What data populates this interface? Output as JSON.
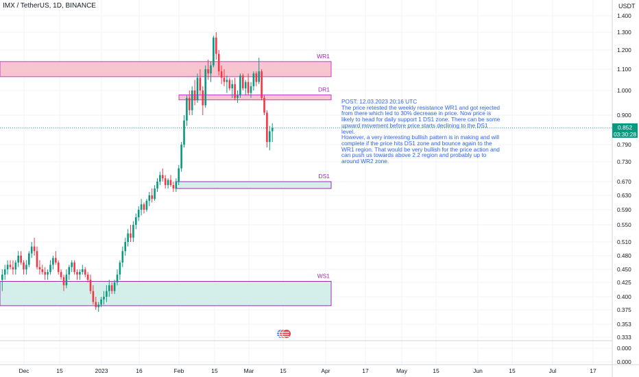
{
  "header": {
    "title": "IMX / TetherUS, 1D, BINANCE",
    "currency": "USDT"
  },
  "note": {
    "text": "POST: 12.03.2023 20:16 UTC\nThe price retested the weekly resistance WR1 and got rejected from there which led to 30% decrease in price. Now price is likely to head for daily support 1 DS1 zone. There can be some upward movement before price starts declining to the DS1 level.\nHowever, a very interesting bullish pattern is in making and will complete if the price hits DS1 zone and bounce again to the WR1 region. That would be very bullish for the price action and can push us towards above 2.2 region and probably up to around WR2 zone."
  },
  "price_tag": {
    "price": "0.852",
    "countdown": "03:30:28"
  },
  "chart_data": {
    "type": "candlestick",
    "y_ticks": [
      "1.400",
      "1.300",
      "1.200",
      "1.100",
      "1.000",
      "0.900",
      "0.790",
      "0.730",
      "0.670",
      "0.630",
      "0.590",
      "0.550",
      "0.510",
      "0.480",
      "0.450",
      "0.425",
      "0.400",
      "0.375",
      "0.353",
      "0.333"
    ],
    "y_ticks_lower": [
      "0.000",
      "0.000"
    ],
    "x_ticks": [
      "Dec",
      "15",
      "2023",
      "16",
      "Feb",
      "15",
      "Mar",
      "15",
      "Apr",
      "17",
      "May",
      "15",
      "Jun",
      "15",
      "Jul",
      "17"
    ],
    "current_price": 0.852,
    "zones": [
      {
        "label": "WR1",
        "low": 1.065,
        "high": 1.14,
        "color": "#f7c5cf",
        "border": "#c23ccc",
        "label_color": "#9c27b0"
      },
      {
        "label": "DR1",
        "low": 0.962,
        "high": 0.982,
        "color": "#f7c5cf",
        "border": "#c23ccc",
        "label_color": "#9c27b0"
      },
      {
        "label": "DS1",
        "low": 0.65,
        "high": 0.67,
        "color": "#d4efe9",
        "border": "#9c27b0",
        "label_color": "#9c27b0"
      },
      {
        "label": "WS1",
        "low": 0.383,
        "high": 0.427,
        "color": "#d4efe9",
        "border": "#9c27b0",
        "label_color": "#9c27b0"
      }
    ],
    "colors": {
      "up": "#089981",
      "down": "#f23645",
      "grid": "#f0f3fa"
    },
    "candles": [
      [
        0.43,
        0.45,
        0.41,
        0.44
      ],
      [
        0.44,
        0.46,
        0.43,
        0.45
      ],
      [
        0.45,
        0.47,
        0.44,
        0.46
      ],
      [
        0.46,
        0.47,
        0.45,
        0.455
      ],
      [
        0.455,
        0.47,
        0.44,
        0.45
      ],
      [
        0.45,
        0.47,
        0.44,
        0.465
      ],
      [
        0.465,
        0.49,
        0.455,
        0.48
      ],
      [
        0.48,
        0.49,
        0.46,
        0.465
      ],
      [
        0.465,
        0.47,
        0.44,
        0.45
      ],
      [
        0.45,
        0.47,
        0.44,
        0.46
      ],
      [
        0.46,
        0.49,
        0.455,
        0.485
      ],
      [
        0.485,
        0.51,
        0.475,
        0.5
      ],
      [
        0.5,
        0.52,
        0.48,
        0.49
      ],
      [
        0.49,
        0.5,
        0.45,
        0.455
      ],
      [
        0.455,
        0.47,
        0.44,
        0.45
      ],
      [
        0.45,
        0.46,
        0.44,
        0.445
      ],
      [
        0.445,
        0.455,
        0.43,
        0.44
      ],
      [
        0.44,
        0.45,
        0.43,
        0.445
      ],
      [
        0.445,
        0.47,
        0.44,
        0.46
      ],
      [
        0.46,
        0.48,
        0.45,
        0.475
      ],
      [
        0.475,
        0.49,
        0.46,
        0.465
      ],
      [
        0.465,
        0.47,
        0.44,
        0.445
      ],
      [
        0.445,
        0.45,
        0.43,
        0.435
      ],
      [
        0.435,
        0.44,
        0.41,
        0.42
      ],
      [
        0.42,
        0.45,
        0.415,
        0.44
      ],
      [
        0.44,
        0.46,
        0.43,
        0.455
      ],
      [
        0.455,
        0.47,
        0.445,
        0.465
      ],
      [
        0.465,
        0.47,
        0.44,
        0.445
      ],
      [
        0.445,
        0.45,
        0.43,
        0.44
      ],
      [
        0.44,
        0.45,
        0.43,
        0.445
      ],
      [
        0.445,
        0.46,
        0.44,
        0.45
      ],
      [
        0.45,
        0.455,
        0.435,
        0.44
      ],
      [
        0.44,
        0.445,
        0.425,
        0.43
      ],
      [
        0.43,
        0.44,
        0.405,
        0.41
      ],
      [
        0.41,
        0.42,
        0.385,
        0.39
      ],
      [
        0.39,
        0.4,
        0.375,
        0.38
      ],
      [
        0.38,
        0.39,
        0.372,
        0.385
      ],
      [
        0.385,
        0.4,
        0.38,
        0.395
      ],
      [
        0.395,
        0.41,
        0.385,
        0.4
      ],
      [
        0.4,
        0.42,
        0.39,
        0.41
      ],
      [
        0.41,
        0.43,
        0.4,
        0.42
      ],
      [
        0.42,
        0.425,
        0.405,
        0.41
      ],
      [
        0.41,
        0.43,
        0.405,
        0.425
      ],
      [
        0.425,
        0.45,
        0.42,
        0.44
      ],
      [
        0.44,
        0.47,
        0.43,
        0.465
      ],
      [
        0.465,
        0.5,
        0.455,
        0.49
      ],
      [
        0.49,
        0.52,
        0.48,
        0.51
      ],
      [
        0.51,
        0.54,
        0.5,
        0.53
      ],
      [
        0.53,
        0.55,
        0.51,
        0.52
      ],
      [
        0.52,
        0.56,
        0.51,
        0.55
      ],
      [
        0.55,
        0.58,
        0.54,
        0.57
      ],
      [
        0.57,
        0.6,
        0.56,
        0.59
      ],
      [
        0.59,
        0.62,
        0.575,
        0.605
      ],
      [
        0.605,
        0.61,
        0.58,
        0.59
      ],
      [
        0.59,
        0.62,
        0.585,
        0.615
      ],
      [
        0.615,
        0.64,
        0.6,
        0.63
      ],
      [
        0.63,
        0.65,
        0.61,
        0.62
      ],
      [
        0.62,
        0.66,
        0.615,
        0.65
      ],
      [
        0.65,
        0.68,
        0.64,
        0.67
      ],
      [
        0.67,
        0.7,
        0.66,
        0.69
      ],
      [
        0.69,
        0.71,
        0.67,
        0.68
      ],
      [
        0.68,
        0.69,
        0.65,
        0.66
      ],
      [
        0.66,
        0.68,
        0.65,
        0.675
      ],
      [
        0.675,
        0.69,
        0.655,
        0.66
      ],
      [
        0.66,
        0.67,
        0.64,
        0.65
      ],
      [
        0.65,
        0.68,
        0.64,
        0.67
      ],
      [
        0.67,
        0.72,
        0.66,
        0.71
      ],
      [
        0.71,
        0.8,
        0.7,
        0.79
      ],
      [
        0.79,
        0.9,
        0.78,
        0.88
      ],
      [
        0.88,
        0.98,
        0.86,
        0.97
      ],
      [
        0.97,
        1.0,
        0.9,
        0.92
      ],
      [
        0.92,
        1.02,
        0.9,
        1.0
      ],
      [
        1.0,
        1.05,
        0.94,
        0.96
      ],
      [
        0.96,
        1.08,
        0.95,
        1.06
      ],
      [
        1.06,
        1.1,
        0.98,
        1.0
      ],
      [
        1.0,
        1.02,
        0.9,
        0.94
      ],
      [
        0.94,
        1.12,
        0.93,
        1.1
      ],
      [
        1.1,
        1.15,
        1.05,
        1.08
      ],
      [
        1.08,
        1.14,
        1.04,
        1.12
      ],
      [
        1.12,
        1.28,
        1.11,
        1.27
      ],
      [
        1.27,
        1.3,
        1.15,
        1.18
      ],
      [
        1.18,
        1.2,
        1.07,
        1.09
      ],
      [
        1.09,
        1.12,
        1.03,
        1.06
      ],
      [
        1.06,
        1.1,
        1.02,
        1.04
      ],
      [
        1.04,
        1.07,
        0.99,
        1.05
      ],
      [
        1.05,
        1.06,
        1.0,
        1.01
      ],
      [
        1.01,
        1.05,
        0.97,
        1.03
      ],
      [
        1.03,
        1.06,
        0.96,
        0.97
      ],
      [
        0.97,
        1.0,
        0.95,
        0.98
      ],
      [
        0.98,
        1.08,
        0.97,
        1.07
      ],
      [
        1.07,
        1.08,
        1.0,
        1.01
      ],
      [
        1.01,
        1.05,
        0.98,
        1.04
      ],
      [
        1.04,
        1.08,
        0.98,
        0.99
      ],
      [
        0.99,
        1.04,
        0.97,
        1.02
      ],
      [
        1.02,
        1.09,
        1.0,
        1.08
      ],
      [
        1.08,
        1.09,
        1.02,
        1.04
      ],
      [
        1.04,
        1.16,
        1.03,
        1.09
      ],
      [
        1.09,
        1.1,
        0.96,
        0.97
      ],
      [
        0.97,
        0.98,
        0.9,
        0.91
      ],
      [
        0.91,
        0.92,
        0.78,
        0.8
      ],
      [
        0.8,
        0.86,
        0.77,
        0.84
      ],
      [
        0.84,
        0.87,
        0.8,
        0.852
      ]
    ]
  }
}
